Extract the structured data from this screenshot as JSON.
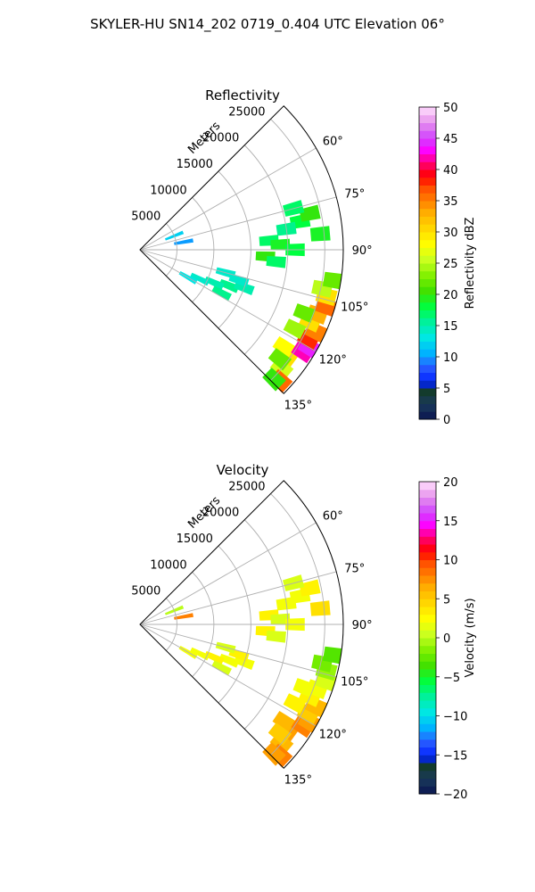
{
  "suptitle": "SKYLER-HU  SN14_202  0719_0.404 UTC Elevation 06°",
  "range_axis_label": "Meters",
  "range_ticks": [
    "5000",
    "10000",
    "15000",
    "20000",
    "25000"
  ],
  "range_values": [
    5000,
    10000,
    15000,
    20000,
    25000
  ],
  "range_max": 27500,
  "angle_ticks": [
    "60°",
    "75°",
    "90°",
    "105°",
    "120°",
    "135°"
  ],
  "angle_values": [
    60,
    75,
    90,
    105,
    120,
    135
  ],
  "sector": {
    "start_deg": 45,
    "end_deg": 135
  },
  "colors": {
    "grid": "#b0b0b0",
    "frame": "#000000"
  },
  "chart_data": [
    {
      "type": "heatmap",
      "title": "Reflectivity",
      "colorbar_label": "Reflectivity dBZ",
      "colorbar_ticks": [
        "0",
        "5",
        "10",
        "15",
        "20",
        "25",
        "30",
        "35",
        "40",
        "45",
        "50"
      ],
      "vmin": 0,
      "vmax": 50,
      "cells": [
        {
          "az": 126,
          "range": 24500,
          "value": 30
        },
        {
          "az": 124,
          "range": 23500,
          "value": 28
        },
        {
          "az": 122,
          "range": 26000,
          "value": 42
        },
        {
          "az": 120,
          "range": 26500,
          "value": 44
        },
        {
          "az": 118,
          "range": 25800,
          "value": 38
        },
        {
          "az": 115,
          "range": 26200,
          "value": 35
        },
        {
          "az": 113,
          "range": 25000,
          "value": 30
        },
        {
          "az": 110,
          "range": 25500,
          "value": 33
        },
        {
          "az": 107,
          "range": 26300,
          "value": 36
        },
        {
          "az": 104,
          "range": 26000,
          "value": 30
        },
        {
          "az": 102,
          "range": 25200,
          "value": 25
        },
        {
          "az": 99,
          "range": 26500,
          "value": 22
        },
        {
          "az": 130,
          "range": 25000,
          "value": 26
        },
        {
          "az": 133,
          "range": 26000,
          "value": 36
        },
        {
          "az": 134,
          "range": 25200,
          "value": 20
        },
        {
          "az": 128,
          "range": 24000,
          "value": 22
        },
        {
          "az": 117,
          "range": 23500,
          "value": 24
        },
        {
          "az": 111,
          "range": 23800,
          "value": 22
        },
        {
          "az": 80,
          "range": 22000,
          "value": 18
        },
        {
          "az": 78,
          "range": 23500,
          "value": 20
        },
        {
          "az": 75,
          "range": 21500,
          "value": 17
        },
        {
          "az": 82,
          "range": 20000,
          "value": 16
        },
        {
          "az": 86,
          "range": 17500,
          "value": 17
        },
        {
          "az": 88,
          "range": 19000,
          "value": 19
        },
        {
          "az": 90,
          "range": 21000,
          "value": 18
        },
        {
          "az": 93,
          "range": 17000,
          "value": 20
        },
        {
          "az": 95,
          "range": 18500,
          "value": 17
        },
        {
          "az": 85,
          "range": 24500,
          "value": 19
        },
        {
          "az": 112,
          "range": 13000,
          "value": 16
        },
        {
          "az": 114,
          "range": 11000,
          "value": 15
        },
        {
          "az": 116,
          "range": 9000,
          "value": 14
        },
        {
          "az": 118,
          "range": 12500,
          "value": 16
        },
        {
          "az": 110,
          "range": 15000,
          "value": 15
        },
        {
          "az": 107,
          "range": 14000,
          "value": 14
        },
        {
          "az": 120,
          "range": 7500,
          "value": 13
        },
        {
          "az": 105,
          "range": 12000,
          "value": 14
        },
        {
          "az": 68,
          "range": 5000,
          "value": 12
        },
        {
          "az": 80,
          "range": 6000,
          "value": 10
        }
      ]
    },
    {
      "type": "heatmap",
      "title": "Velocity",
      "colorbar_label": "Velocity (m/s)",
      "colorbar_ticks": [
        "−20",
        "−15",
        "−10",
        "−5",
        "0",
        "5",
        "10",
        "15",
        "20"
      ],
      "vmin": -20,
      "vmax": 20,
      "cells": [
        {
          "az": 126,
          "range": 24500,
          "value": 7
        },
        {
          "az": 124,
          "range": 23500,
          "value": 6
        },
        {
          "az": 122,
          "range": 26000,
          "value": 8
        },
        {
          "az": 120,
          "range": 26500,
          "value": 7
        },
        {
          "az": 118,
          "range": 25800,
          "value": 5
        },
        {
          "az": 115,
          "range": 26200,
          "value": 6
        },
        {
          "az": 113,
          "range": 25000,
          "value": 3
        },
        {
          "az": 110,
          "range": 25500,
          "value": 2
        },
        {
          "az": 107,
          "range": 26300,
          "value": 1
        },
        {
          "az": 104,
          "range": 26000,
          "value": -1
        },
        {
          "az": 102,
          "range": 25200,
          "value": -2
        },
        {
          "az": 99,
          "range": 26500,
          "value": -3
        },
        {
          "az": 130,
          "range": 25000,
          "value": 6
        },
        {
          "az": 133,
          "range": 26000,
          "value": 8
        },
        {
          "az": 134,
          "range": 25200,
          "value": 7
        },
        {
          "az": 128,
          "range": 24000,
          "value": 5
        },
        {
          "az": 117,
          "range": 23500,
          "value": 3
        },
        {
          "az": 111,
          "range": 23800,
          "value": 2
        },
        {
          "az": 80,
          "range": 22000,
          "value": 2
        },
        {
          "az": 78,
          "range": 23500,
          "value": 3
        },
        {
          "az": 75,
          "range": 21500,
          "value": 1
        },
        {
          "az": 82,
          "range": 20000,
          "value": 2
        },
        {
          "az": 86,
          "range": 17500,
          "value": 3
        },
        {
          "az": 88,
          "range": 19000,
          "value": 1
        },
        {
          "az": 90,
          "range": 21000,
          "value": 2
        },
        {
          "az": 93,
          "range": 17000,
          "value": 3
        },
        {
          "az": 95,
          "range": 18500,
          "value": 1
        },
        {
          "az": 85,
          "range": 24500,
          "value": 4
        },
        {
          "az": 112,
          "range": 13000,
          "value": 2
        },
        {
          "az": 114,
          "range": 11000,
          "value": 3
        },
        {
          "az": 116,
          "range": 9000,
          "value": 2
        },
        {
          "az": 118,
          "range": 12500,
          "value": 1
        },
        {
          "az": 110,
          "range": 15000,
          "value": 2
        },
        {
          "az": 107,
          "range": 14000,
          "value": 3
        },
        {
          "az": 120,
          "range": 7500,
          "value": 2
        },
        {
          "az": 105,
          "range": 12000,
          "value": 1
        },
        {
          "az": 68,
          "range": 5000,
          "value": 0
        },
        {
          "az": 80,
          "range": 6000,
          "value": 8
        }
      ]
    }
  ]
}
